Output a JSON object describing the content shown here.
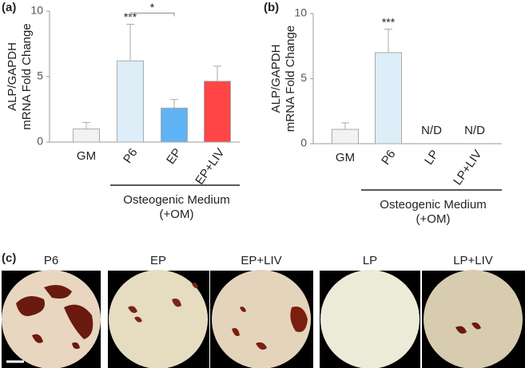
{
  "chart_data": [
    {
      "type": "bar",
      "panel": "(a)",
      "ylabel": [
        "ALP/GAPDH",
        "mRNA Fold Change"
      ],
      "categories": [
        "GM",
        "P6",
        "EP",
        "EP+LIV"
      ],
      "values": [
        1,
        6.2,
        2.6,
        4.65
      ],
      "errors": [
        0.5,
        2.8,
        0.65,
        1.15
      ],
      "colors": [
        "#f2f2f2",
        "#ddeef8",
        "#5fb3f5",
        "#ff4545"
      ],
      "ylim": [
        0,
        10
      ],
      "yticks": [
        0,
        5,
        10
      ],
      "annotations": [
        {
          "text": "***",
          "at": 1
        },
        {
          "text": "*",
          "between": [
            1,
            2
          ]
        }
      ],
      "group": {
        "label": [
          "Osteogenic Medium",
          "(+OM)"
        ],
        "from": 1,
        "to": 3
      }
    },
    {
      "type": "bar",
      "panel": "(b)",
      "ylabel": [
        "ALP/GAPDH",
        "mRNA Fold Change"
      ],
      "categories": [
        "GM",
        "P6",
        "LP",
        "LP+LIV"
      ],
      "values": [
        1.1,
        7,
        null,
        null
      ],
      "value_labels": [
        null,
        null,
        "N/D",
        "N/D"
      ],
      "errors": [
        0.5,
        1.8,
        null,
        null
      ],
      "colors": [
        "#f2f2f2",
        "#ddeef8",
        "#ddeef8",
        "#ddeef8"
      ],
      "ylim": [
        0,
        10
      ],
      "yticks": [
        0,
        5,
        10
      ],
      "annotations": [
        {
          "text": "***",
          "at": 1
        }
      ],
      "group": {
        "label": [
          "Osteogenic Medium",
          "(+OM)"
        ],
        "from": 1,
        "to": 3
      }
    }
  ],
  "panel_c": {
    "label": "(c)",
    "images": [
      "P6",
      "EP",
      "EP+LIV",
      "LP",
      "LP+LIV"
    ]
  }
}
